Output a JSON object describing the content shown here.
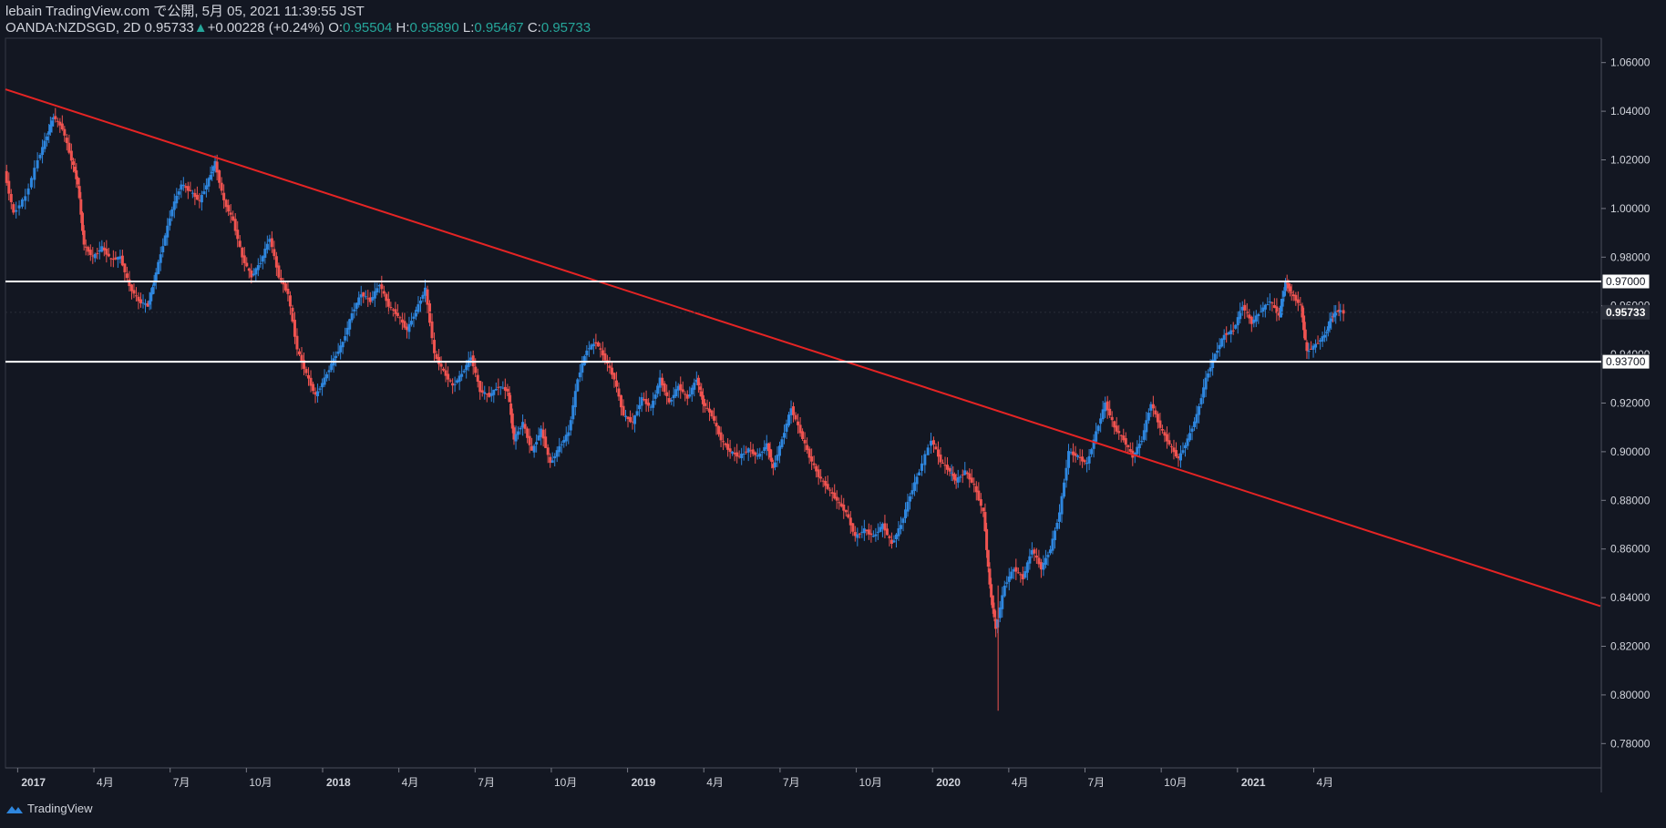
{
  "header": {
    "line1": "lebain TradingView.com で公開, 5月 05, 2021 11:39:55 JST",
    "symbol": "OANDA:NZDSGD, 2D",
    "last": "0.95733",
    "change": "+0.00228 (+0.24%)",
    "o_label": "O:",
    "o": "0.95504",
    "h_label": "H:",
    "h": "0.95890",
    "l_label": "L:",
    "l": "0.95467",
    "c_label": "C:",
    "c": "0.95733"
  },
  "footer": {
    "brand": "TradingView"
  },
  "colors": {
    "bg": "#131722",
    "up": "#2e86de",
    "down": "#ef5350",
    "trend": "#e52424",
    "level": "#ffffff",
    "axis": "#d1d4dc"
  },
  "chart_data": {
    "type": "candlestick",
    "y_ticks": [
      "1.06000",
      "1.04000",
      "1.02000",
      "1.00000",
      "0.98000",
      "0.96000",
      "0.94000",
      "0.92000",
      "0.90000",
      "0.88000",
      "0.86000",
      "0.84000",
      "0.82000",
      "0.80000",
      "0.78000"
    ],
    "ylim": [
      0.77,
      1.07
    ],
    "x_ticks": [
      {
        "label": "2017",
        "t": 2017.0
      },
      {
        "label": "4月",
        "t": 2017.25
      },
      {
        "label": "7月",
        "t": 2017.5
      },
      {
        "label": "10月",
        "t": 2017.75
      },
      {
        "label": "2018",
        "t": 2018.0
      },
      {
        "label": "4月",
        "t": 2018.25
      },
      {
        "label": "7月",
        "t": 2018.5
      },
      {
        "label": "10月",
        "t": 2018.75
      },
      {
        "label": "2019",
        "t": 2019.0
      },
      {
        "label": "4月",
        "t": 2019.25
      },
      {
        "label": "7月",
        "t": 2019.5
      },
      {
        "label": "10月",
        "t": 2019.75
      },
      {
        "label": "2020",
        "t": 2020.0
      },
      {
        "label": "4月",
        "t": 2020.25
      },
      {
        "label": "7月",
        "t": 2020.5
      },
      {
        "label": "10月",
        "t": 2020.75
      },
      {
        "label": "2021",
        "t": 2021.0
      },
      {
        "label": "4月",
        "t": 2021.25
      }
    ],
    "xlim": [
      2016.96,
      2022.19
    ],
    "levels": [
      {
        "label": "0.97000",
        "value": 0.97
      },
      {
        "label": "0.93700",
        "value": 0.937
      }
    ],
    "current": {
      "label": "0.95733",
      "value": 0.95733
    },
    "trendline": {
      "x": [
        2016.96,
        2022.19
      ],
      "y": [
        1.049,
        0.8365
      ]
    },
    "series": [
      {
        "t": 2016.96,
        "v": 1.015
      },
      {
        "t": 2016.99,
        "v": 0.998
      },
      {
        "t": 2017.03,
        "v": 1.005
      },
      {
        "t": 2017.07,
        "v": 1.02
      },
      {
        "t": 2017.1,
        "v": 1.03
      },
      {
        "t": 2017.12,
        "v": 1.038
      },
      {
        "t": 2017.15,
        "v": 1.033
      },
      {
        "t": 2017.18,
        "v": 1.02
      },
      {
        "t": 2017.2,
        "v": 1.01
      },
      {
        "t": 2017.22,
        "v": 0.985
      },
      {
        "t": 2017.25,
        "v": 0.98
      },
      {
        "t": 2017.28,
        "v": 0.984
      },
      {
        "t": 2017.31,
        "v": 0.979
      },
      {
        "t": 2017.34,
        "v": 0.98
      },
      {
        "t": 2017.37,
        "v": 0.968
      },
      {
        "t": 2017.4,
        "v": 0.962
      },
      {
        "t": 2017.43,
        "v": 0.96
      },
      {
        "t": 2017.45,
        "v": 0.97
      },
      {
        "t": 2017.48,
        "v": 0.985
      },
      {
        "t": 2017.51,
        "v": 1.0
      },
      {
        "t": 2017.54,
        "v": 1.01
      },
      {
        "t": 2017.57,
        "v": 1.007
      },
      {
        "t": 2017.6,
        "v": 1.003
      },
      {
        "t": 2017.63,
        "v": 1.012
      },
      {
        "t": 2017.65,
        "v": 1.019
      },
      {
        "t": 2017.68,
        "v": 1.003
      },
      {
        "t": 2017.71,
        "v": 0.995
      },
      {
        "t": 2017.74,
        "v": 0.98
      },
      {
        "t": 2017.77,
        "v": 0.972
      },
      {
        "t": 2017.8,
        "v": 0.978
      },
      {
        "t": 2017.83,
        "v": 0.988
      },
      {
        "t": 2017.86,
        "v": 0.972
      },
      {
        "t": 2017.89,
        "v": 0.965
      },
      {
        "t": 2017.92,
        "v": 0.942
      },
      {
        "t": 2017.95,
        "v": 0.932
      },
      {
        "t": 2017.98,
        "v": 0.923
      },
      {
        "t": 2018.01,
        "v": 0.93
      },
      {
        "t": 2018.04,
        "v": 0.938
      },
      {
        "t": 2018.07,
        "v": 0.945
      },
      {
        "t": 2018.1,
        "v": 0.957
      },
      {
        "t": 2018.13,
        "v": 0.965
      },
      {
        "t": 2018.16,
        "v": 0.962
      },
      {
        "t": 2018.19,
        "v": 0.969
      },
      {
        "t": 2018.22,
        "v": 0.96
      },
      {
        "t": 2018.25,
        "v": 0.956
      },
      {
        "t": 2018.28,
        "v": 0.95
      },
      {
        "t": 2018.31,
        "v": 0.958
      },
      {
        "t": 2018.34,
        "v": 0.967
      },
      {
        "t": 2018.37,
        "v": 0.94
      },
      {
        "t": 2018.4,
        "v": 0.933
      },
      {
        "t": 2018.43,
        "v": 0.927
      },
      {
        "t": 2018.46,
        "v": 0.932
      },
      {
        "t": 2018.49,
        "v": 0.939
      },
      {
        "t": 2018.52,
        "v": 0.925
      },
      {
        "t": 2018.55,
        "v": 0.923
      },
      {
        "t": 2018.58,
        "v": 0.927
      },
      {
        "t": 2018.61,
        "v": 0.925
      },
      {
        "t": 2018.63,
        "v": 0.905
      },
      {
        "t": 2018.66,
        "v": 0.912
      },
      {
        "t": 2018.69,
        "v": 0.9
      },
      {
        "t": 2018.72,
        "v": 0.909
      },
      {
        "t": 2018.75,
        "v": 0.895
      },
      {
        "t": 2018.78,
        "v": 0.902
      },
      {
        "t": 2018.81,
        "v": 0.908
      },
      {
        "t": 2018.84,
        "v": 0.93
      },
      {
        "t": 2018.87,
        "v": 0.942
      },
      {
        "t": 2018.9,
        "v": 0.945
      },
      {
        "t": 2018.93,
        "v": 0.938
      },
      {
        "t": 2018.96,
        "v": 0.93
      },
      {
        "t": 2018.99,
        "v": 0.915
      },
      {
        "t": 2019.02,
        "v": 0.912
      },
      {
        "t": 2019.05,
        "v": 0.922
      },
      {
        "t": 2019.08,
        "v": 0.918
      },
      {
        "t": 2019.11,
        "v": 0.93
      },
      {
        "t": 2019.14,
        "v": 0.92
      },
      {
        "t": 2019.17,
        "v": 0.927
      },
      {
        "t": 2019.2,
        "v": 0.922
      },
      {
        "t": 2019.23,
        "v": 0.93
      },
      {
        "t": 2019.25,
        "v": 0.92
      },
      {
        "t": 2019.28,
        "v": 0.915
      },
      {
        "t": 2019.31,
        "v": 0.905
      },
      {
        "t": 2019.34,
        "v": 0.9
      },
      {
        "t": 2019.37,
        "v": 0.898
      },
      {
        "t": 2019.4,
        "v": 0.901
      },
      {
        "t": 2019.43,
        "v": 0.898
      },
      {
        "t": 2019.46,
        "v": 0.903
      },
      {
        "t": 2019.48,
        "v": 0.893
      },
      {
        "t": 2019.51,
        "v": 0.905
      },
      {
        "t": 2019.54,
        "v": 0.918
      },
      {
        "t": 2019.57,
        "v": 0.908
      },
      {
        "t": 2019.6,
        "v": 0.898
      },
      {
        "t": 2019.63,
        "v": 0.89
      },
      {
        "t": 2019.66,
        "v": 0.885
      },
      {
        "t": 2019.69,
        "v": 0.88
      },
      {
        "t": 2019.72,
        "v": 0.875
      },
      {
        "t": 2019.75,
        "v": 0.865
      },
      {
        "t": 2019.78,
        "v": 0.868
      },
      {
        "t": 2019.81,
        "v": 0.865
      },
      {
        "t": 2019.84,
        "v": 0.87
      },
      {
        "t": 2019.87,
        "v": 0.862
      },
      {
        "t": 2019.9,
        "v": 0.87
      },
      {
        "t": 2019.93,
        "v": 0.882
      },
      {
        "t": 2019.96,
        "v": 0.892
      },
      {
        "t": 2020.0,
        "v": 0.905
      },
      {
        "t": 2020.03,
        "v": 0.896
      },
      {
        "t": 2020.06,
        "v": 0.892
      },
      {
        "t": 2020.08,
        "v": 0.888
      },
      {
        "t": 2020.11,
        "v": 0.892
      },
      {
        "t": 2020.14,
        "v": 0.886
      },
      {
        "t": 2020.17,
        "v": 0.875
      },
      {
        "t": 2020.19,
        "v": 0.845
      },
      {
        "t": 2020.21,
        "v": 0.827
      },
      {
        "t": 2020.24,
        "v": 0.845
      },
      {
        "t": 2020.27,
        "v": 0.852
      },
      {
        "t": 2020.3,
        "v": 0.848
      },
      {
        "t": 2020.33,
        "v": 0.86
      },
      {
        "t": 2020.36,
        "v": 0.852
      },
      {
        "t": 2020.39,
        "v": 0.86
      },
      {
        "t": 2020.42,
        "v": 0.875
      },
      {
        "t": 2020.45,
        "v": 0.9
      },
      {
        "t": 2020.48,
        "v": 0.898
      },
      {
        "t": 2020.51,
        "v": 0.895
      },
      {
        "t": 2020.54,
        "v": 0.908
      },
      {
        "t": 2020.57,
        "v": 0.92
      },
      {
        "t": 2020.6,
        "v": 0.91
      },
      {
        "t": 2020.63,
        "v": 0.905
      },
      {
        "t": 2020.66,
        "v": 0.898
      },
      {
        "t": 2020.69,
        "v": 0.905
      },
      {
        "t": 2020.72,
        "v": 0.92
      },
      {
        "t": 2020.75,
        "v": 0.91
      },
      {
        "t": 2020.78,
        "v": 0.903
      },
      {
        "t": 2020.81,
        "v": 0.897
      },
      {
        "t": 2020.84,
        "v": 0.905
      },
      {
        "t": 2020.87,
        "v": 0.915
      },
      {
        "t": 2020.9,
        "v": 0.93
      },
      {
        "t": 2020.93,
        "v": 0.94
      },
      {
        "t": 2020.96,
        "v": 0.948
      },
      {
        "t": 2020.99,
        "v": 0.95
      },
      {
        "t": 2021.02,
        "v": 0.96
      },
      {
        "t": 2021.05,
        "v": 0.953
      },
      {
        "t": 2021.08,
        "v": 0.958
      },
      {
        "t": 2021.11,
        "v": 0.962
      },
      {
        "t": 2021.14,
        "v": 0.956
      },
      {
        "t": 2021.16,
        "v": 0.97
      },
      {
        "t": 2021.18,
        "v": 0.965
      },
      {
        "t": 2021.21,
        "v": 0.96
      },
      {
        "t": 2021.23,
        "v": 0.941
      },
      {
        "t": 2021.26,
        "v": 0.944
      },
      {
        "t": 2021.29,
        "v": 0.948
      },
      {
        "t": 2021.31,
        "v": 0.955
      },
      {
        "t": 2021.33,
        "v": 0.958
      },
      {
        "t": 2021.35,
        "v": 0.9573
      }
    ]
  }
}
